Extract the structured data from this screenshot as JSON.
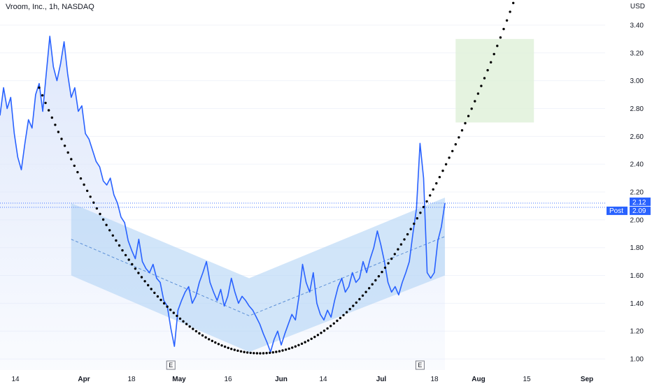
{
  "header": {
    "title": "Vroom, Inc., 1h, NASDAQ",
    "currency": "USD"
  },
  "colors": {
    "line": "#2962ff",
    "area_fill": "#dbe5fb",
    "channel_fill": "#b3d3f5",
    "target_box": "#dff0d8",
    "trend_dots": "#000000",
    "price_badge": "#2962ff"
  },
  "chart_data": {
    "type": "line",
    "title": "Vroom, Inc., 1h, NASDAQ",
    "ylim": [
      0.92,
      3.48
    ],
    "y_ticks": [
      1.0,
      1.2,
      1.4,
      1.6,
      1.8,
      2.0,
      2.2,
      2.4,
      2.6,
      2.8,
      3.0,
      3.2,
      3.4
    ],
    "y_tick_labels": [
      "1.00",
      "1.20",
      "1.40",
      "1.60",
      "1.80",
      "2.00",
      "2.20",
      "2.40",
      "2.60",
      "2.80",
      "3.00",
      "3.20",
      "3.40"
    ],
    "x_tick_labels": [
      {
        "label": "14",
        "major": false
      },
      {
        "label": "Apr",
        "major": true
      },
      {
        "label": "18",
        "major": false
      },
      {
        "label": "May",
        "major": true
      },
      {
        "label": "16",
        "major": false
      },
      {
        "label": "Jun",
        "major": true
      },
      {
        "label": "14",
        "major": false
      },
      {
        "label": "Jul",
        "major": true
      },
      {
        "label": "18",
        "major": false
      },
      {
        "label": "Aug",
        "major": true
      },
      {
        "label": "15",
        "major": false
      },
      {
        "label": "Sep",
        "major": true
      }
    ],
    "series": [
      {
        "points": [
          [
            0,
            2.75
          ],
          [
            1,
            2.95
          ],
          [
            2,
            2.8
          ],
          [
            3,
            2.88
          ],
          [
            4,
            2.62
          ],
          [
            5,
            2.45
          ],
          [
            6,
            2.36
          ],
          [
            7,
            2.55
          ],
          [
            8,
            2.72
          ],
          [
            9,
            2.66
          ],
          [
            10,
            2.9
          ],
          [
            11,
            2.98
          ],
          [
            12,
            2.78
          ],
          [
            13,
            3.05
          ],
          [
            14,
            3.32
          ],
          [
            15,
            3.1
          ],
          [
            16,
            3.0
          ],
          [
            17,
            3.12
          ],
          [
            18,
            3.28
          ],
          [
            19,
            3.05
          ],
          [
            20,
            2.88
          ],
          [
            21,
            2.95
          ],
          [
            22,
            2.78
          ],
          [
            23,
            2.82
          ],
          [
            24,
            2.62
          ],
          [
            25,
            2.58
          ],
          [
            26,
            2.5
          ],
          [
            27,
            2.42
          ],
          [
            28,
            2.38
          ],
          [
            29,
            2.28
          ],
          [
            30,
            2.25
          ],
          [
            31,
            2.3
          ],
          [
            32,
            2.18
          ],
          [
            33,
            2.12
          ],
          [
            34,
            2.02
          ],
          [
            35,
            1.98
          ],
          [
            36,
            1.85
          ],
          [
            37,
            1.78
          ],
          [
            38,
            1.72
          ],
          [
            39,
            1.86
          ],
          [
            40,
            1.7
          ],
          [
            41,
            1.65
          ],
          [
            42,
            1.62
          ],
          [
            43,
            1.68
          ],
          [
            44,
            1.58
          ],
          [
            45,
            1.55
          ],
          [
            46,
            1.42
          ],
          [
            47,
            1.38
          ],
          [
            48,
            1.22
          ],
          [
            49,
            1.09
          ],
          [
            50,
            1.35
          ],
          [
            51,
            1.42
          ],
          [
            52,
            1.48
          ],
          [
            53,
            1.52
          ],
          [
            54,
            1.4
          ],
          [
            55,
            1.45
          ],
          [
            56,
            1.55
          ],
          [
            57,
            1.62
          ],
          [
            58,
            1.7
          ],
          [
            59,
            1.55
          ],
          [
            60,
            1.48
          ],
          [
            61,
            1.42
          ],
          [
            62,
            1.5
          ],
          [
            63,
            1.38
          ],
          [
            64,
            1.45
          ],
          [
            65,
            1.58
          ],
          [
            66,
            1.48
          ],
          [
            67,
            1.4
          ],
          [
            68,
            1.45
          ],
          [
            69,
            1.42
          ],
          [
            70,
            1.38
          ],
          [
            71,
            1.35
          ],
          [
            72,
            1.3
          ],
          [
            73,
            1.25
          ],
          [
            74,
            1.18
          ],
          [
            75,
            1.12
          ],
          [
            76,
            1.05
          ],
          [
            77,
            1.14
          ],
          [
            78,
            1.2
          ],
          [
            79,
            1.1
          ],
          [
            80,
            1.18
          ],
          [
            81,
            1.25
          ],
          [
            82,
            1.32
          ],
          [
            83,
            1.28
          ],
          [
            84,
            1.45
          ],
          [
            85,
            1.68
          ],
          [
            86,
            1.55
          ],
          [
            87,
            1.48
          ],
          [
            88,
            1.62
          ],
          [
            89,
            1.4
          ],
          [
            90,
            1.32
          ],
          [
            91,
            1.28
          ],
          [
            92,
            1.35
          ],
          [
            93,
            1.3
          ],
          [
            94,
            1.42
          ],
          [
            95,
            1.52
          ],
          [
            96,
            1.58
          ],
          [
            97,
            1.48
          ],
          [
            98,
            1.52
          ],
          [
            99,
            1.62
          ],
          [
            100,
            1.55
          ],
          [
            101,
            1.58
          ],
          [
            102,
            1.7
          ],
          [
            103,
            1.62
          ],
          [
            104,
            1.72
          ],
          [
            105,
            1.8
          ],
          [
            106,
            1.92
          ],
          [
            107,
            1.82
          ],
          [
            108,
            1.7
          ],
          [
            109,
            1.55
          ],
          [
            110,
            1.48
          ],
          [
            111,
            1.52
          ],
          [
            112,
            1.46
          ],
          [
            113,
            1.55
          ],
          [
            114,
            1.62
          ],
          [
            115,
            1.7
          ],
          [
            116,
            1.9
          ],
          [
            117,
            2.08
          ],
          [
            118,
            2.55
          ],
          [
            119,
            2.3
          ],
          [
            120,
            1.62
          ],
          [
            121,
            1.58
          ],
          [
            122,
            1.62
          ],
          [
            123,
            1.85
          ],
          [
            124,
            1.95
          ],
          [
            125,
            2.12
          ]
        ]
      }
    ],
    "x_range": [
      0,
      170
    ],
    "channel": {
      "upper": [
        [
          20,
          2.12
        ],
        [
          70,
          1.58
        ],
        [
          125,
          2.16
        ]
      ],
      "lower": [
        [
          20,
          1.6
        ],
        [
          70,
          1.05
        ],
        [
          125,
          1.6
        ]
      ],
      "mid": [
        [
          20,
          1.86
        ],
        [
          70,
          1.31
        ],
        [
          125,
          1.88
        ]
      ]
    },
    "trend_curve": {
      "x_start": 11,
      "x_end": 157,
      "vertex_x": 73,
      "vertex_y": 1.04,
      "start_y": 2.95
    },
    "target_box": {
      "x0": 128,
      "x1": 150,
      "y0": 2.7,
      "y1": 3.3
    },
    "price_lines": [
      {
        "label": "2.12",
        "value": 2.12
      },
      {
        "label": "Post",
        "value": 2.09
      },
      {
        "label": "2.09",
        "value": 2.09
      }
    ],
    "earnings_markers": [
      {
        "label": "E",
        "x": 48
      },
      {
        "label": "E",
        "x": 118
      }
    ]
  }
}
